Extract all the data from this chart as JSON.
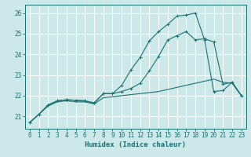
{
  "xlabel": "Humidex (Indice chaleur)",
  "xlim": [
    -0.5,
    23.5
  ],
  "ylim": [
    20.4,
    26.4
  ],
  "yticks": [
    21,
    22,
    23,
    24,
    25,
    26
  ],
  "xticks": [
    0,
    1,
    2,
    3,
    4,
    5,
    6,
    7,
    8,
    9,
    10,
    11,
    12,
    13,
    14,
    15,
    16,
    17,
    18,
    19,
    20,
    21,
    22,
    23
  ],
  "bg_color": "#cce8e8",
  "line_color": "#1a7070",
  "grid_color": "#ffffff",
  "line1_y": [
    20.7,
    21.1,
    21.5,
    21.7,
    21.75,
    21.7,
    21.7,
    21.6,
    21.9,
    21.95,
    22.0,
    22.05,
    22.1,
    22.15,
    22.2,
    22.3,
    22.4,
    22.5,
    22.6,
    22.7,
    22.8,
    22.65,
    22.6,
    22.0
  ],
  "line2_y": [
    20.7,
    21.1,
    21.55,
    21.75,
    21.8,
    21.78,
    21.75,
    21.65,
    22.1,
    22.1,
    22.2,
    22.35,
    22.6,
    23.2,
    23.9,
    24.7,
    24.9,
    25.1,
    24.7,
    24.75,
    24.6,
    22.55,
    22.65,
    22.0
  ],
  "line3_y": [
    20.7,
    21.1,
    21.55,
    21.75,
    21.8,
    21.78,
    21.75,
    21.65,
    22.1,
    22.1,
    22.5,
    23.25,
    23.85,
    24.65,
    25.1,
    25.45,
    25.85,
    25.9,
    26.0,
    24.7,
    22.2,
    22.25,
    22.65,
    22.0
  ]
}
